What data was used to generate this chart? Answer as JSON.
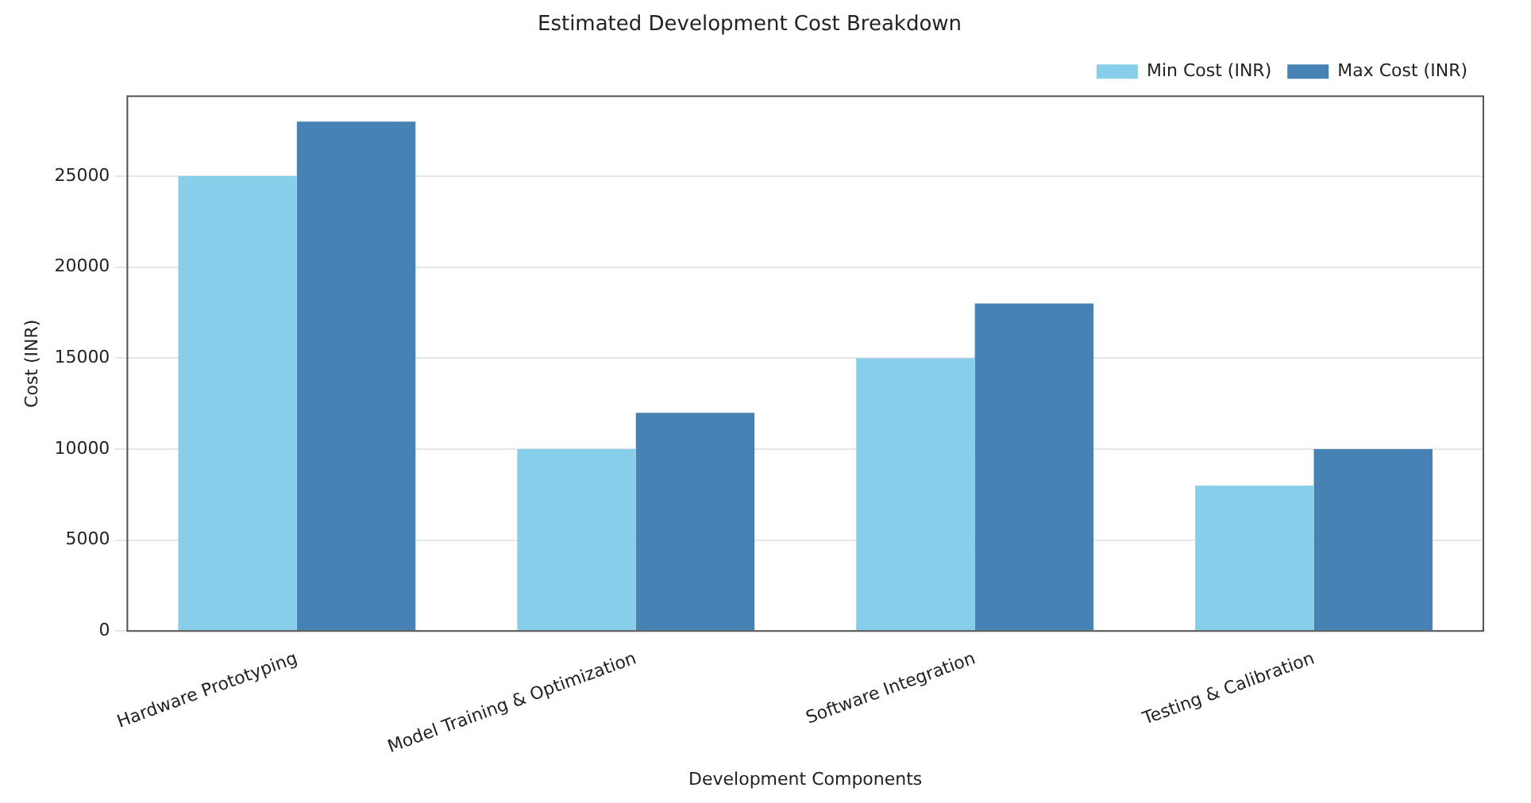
{
  "chart_data": {
    "type": "bar",
    "title": "Estimated Development Cost Breakdown",
    "xlabel": "Development Components",
    "ylabel": "Cost (INR)",
    "categories": [
      "Hardware Prototyping",
      "Model Training & Optimization",
      "Software Integration",
      "Testing & Calibration"
    ],
    "series": [
      {
        "name": "Min Cost (INR)",
        "color": "#87ceeb",
        "values": [
          25000,
          10000,
          15000,
          8000
        ]
      },
      {
        "name": "Max Cost (INR)",
        "color": "#4682b4",
        "values": [
          28000,
          12000,
          18000,
          10000
        ]
      }
    ],
    "ylim": [
      0,
      29400
    ],
    "yticks": [
      0,
      5000,
      10000,
      15000,
      20000,
      25000
    ],
    "grid": "y",
    "legend": "top right"
  }
}
